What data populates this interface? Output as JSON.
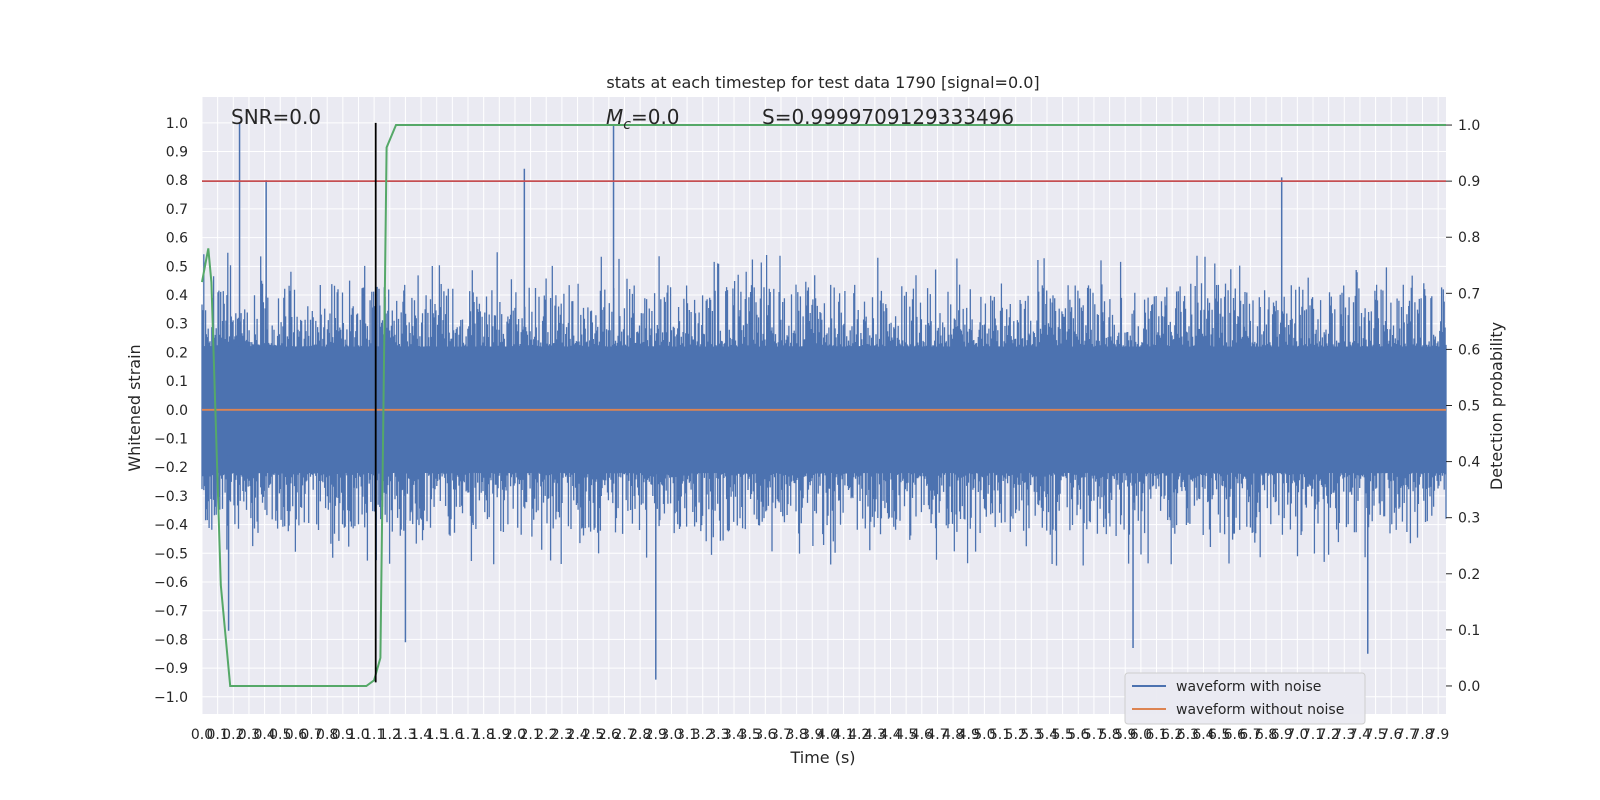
{
  "chart_data": {
    "type": "line",
    "title": "stats at each timestep for test data 1790 [signal=0.0]",
    "xlabel": "Time (s)",
    "ylabel": "Whitened strain",
    "ylabel_right": "Detection probability",
    "xlim": [
      0.0,
      7.95
    ],
    "ylim": [
      -1.06,
      1.09
    ],
    "ylim_right": [
      -0.05,
      1.05
    ],
    "x_ticks": [
      "0.0",
      "0.1",
      "0.2",
      "0.3",
      "0.4",
      "0.5",
      "0.6",
      "0.7",
      "0.8",
      "0.9",
      "1.0",
      "1.1",
      "1.2",
      "1.3",
      "1.4",
      "1.5",
      "1.6",
      "1.7",
      "1.8",
      "1.9",
      "2.0",
      "2.1",
      "2.2",
      "2.3",
      "2.4",
      "2.5",
      "2.6",
      "2.7",
      "2.8",
      "2.9",
      "3.0",
      "3.1",
      "3.2",
      "3.3",
      "3.4",
      "3.5",
      "3.6",
      "3.7",
      "3.8",
      "3.9",
      "4.0",
      "4.1",
      "4.2",
      "4.3",
      "4.4",
      "4.5",
      "4.6",
      "4.7",
      "4.8",
      "4.9",
      "5.0",
      "5.1",
      "5.2",
      "5.3",
      "5.4",
      "5.5",
      "5.6",
      "5.7",
      "5.8",
      "5.9",
      "6.0",
      "6.1",
      "6.2",
      "6.3",
      "6.4",
      "6.5",
      "6.6",
      "6.7",
      "6.8",
      "6.9",
      "7.0",
      "7.1",
      "7.2",
      "7.3",
      "7.4",
      "7.5",
      "7.6",
      "7.7",
      "7.8",
      "7.9"
    ],
    "y_ticks": [
      "1.0",
      "0.9",
      "0.8",
      "0.7",
      "0.6",
      "0.5",
      "0.4",
      "0.3",
      "0.2",
      "0.1",
      "0.0",
      "−0.1",
      "−0.2",
      "−0.3",
      "−0.4",
      "−0.5",
      "−0.6",
      "−0.7",
      "−0.8",
      "−0.9",
      "−1.0"
    ],
    "y_ticks_right": [
      "1.0",
      "0.9",
      "0.8",
      "0.7",
      "0.6",
      "0.5",
      "0.4",
      "0.3",
      "0.2",
      "0.1",
      "0.0"
    ],
    "series": [
      {
        "name": "waveform with noise",
        "color": "#4c72b0",
        "style": "dense noise",
        "envelope_typical": [
          -0.4,
          0.4
        ],
        "spikes": [
          [
            0.24,
            1.0
          ],
          [
            0.41,
            0.8
          ],
          [
            2.06,
            0.84
          ],
          [
            2.63,
            0.99
          ],
          [
            6.9,
            0.81
          ],
          [
            2.9,
            -0.94
          ],
          [
            5.95,
            -0.83
          ],
          [
            7.45,
            -0.85
          ],
          [
            0.17,
            -0.77
          ],
          [
            1.3,
            -0.81
          ]
        ]
      },
      {
        "name": "waveform without noise",
        "color": "#dd8452",
        "x": [
          0.0,
          7.95
        ],
        "y": [
          0.0,
          0.0
        ]
      },
      {
        "name": "detection probability",
        "axis": "right",
        "color": "#55a868",
        "x": [
          0.0,
          0.04,
          0.06,
          0.12,
          0.18,
          0.6,
          1.05,
          1.1,
          1.14,
          1.18,
          1.24,
          7.95
        ],
        "y": [
          0.72,
          0.78,
          0.72,
          0.18,
          0.0,
          0.0,
          0.0,
          0.01,
          0.05,
          0.96,
          1.0,
          1.0
        ]
      }
    ],
    "threshold": {
      "axis": "right",
      "value": 0.9,
      "color": "#c44e52"
    },
    "marker_line": {
      "x": 1.11,
      "y_range": [
        -0.95,
        1.0
      ],
      "color": "#000000"
    },
    "annotations": {
      "snr": "SNR=0.0",
      "mc_symbol": "M",
      "mc_sub": "c",
      "mc_value": "=0.0",
      "score": "S=0.9999709129333496"
    },
    "legend": {
      "position": "lower-right",
      "entries": [
        "waveform with noise",
        "waveform without noise"
      ]
    },
    "grid": true,
    "background": "#eaeaf2"
  }
}
